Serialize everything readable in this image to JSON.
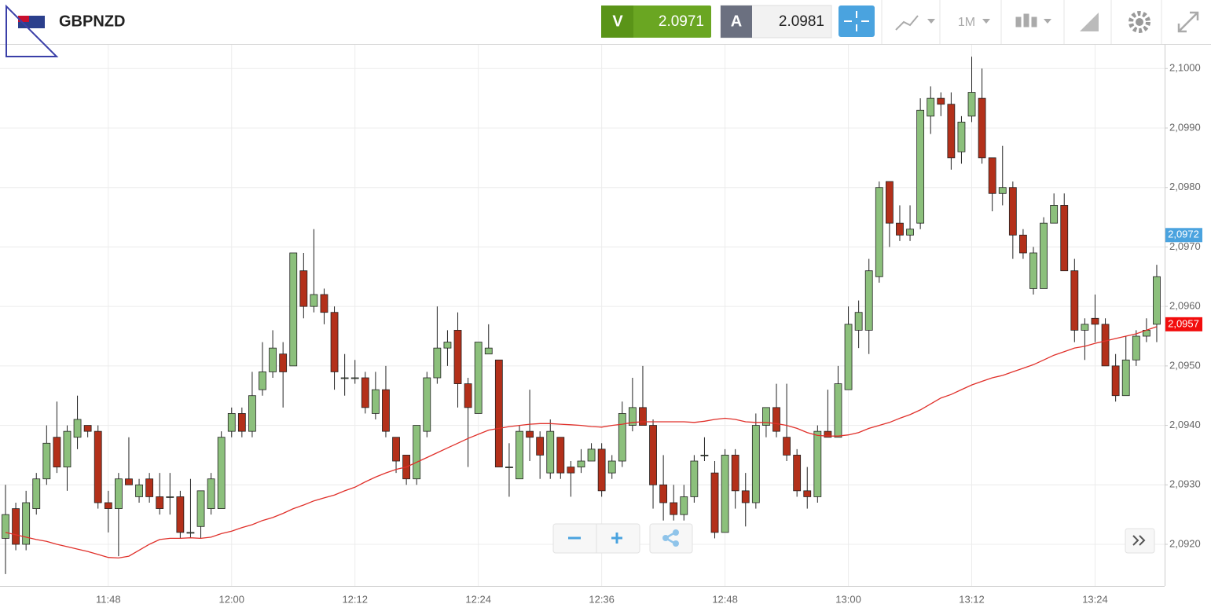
{
  "header": {
    "symbol": "GBPNZD",
    "sell_label": "V",
    "sell_price": "2.0971",
    "buy_label": "A",
    "buy_price": "2.0981",
    "timeframe": "1M"
  },
  "chart_data": {
    "type": "candlestick",
    "categories": [
      null,
      null,
      null,
      null,
      null,
      null,
      null,
      null,
      null,
      null,
      "11:48",
      null,
      null,
      null,
      null,
      null,
      null,
      null,
      null,
      null,
      null,
      null,
      "12:00",
      null,
      null,
      null,
      null,
      null,
      null,
      null,
      null,
      null,
      null,
      null,
      "12:12",
      null,
      null,
      null,
      null,
      null,
      null,
      null,
      null,
      null,
      null,
      null,
      "12:24",
      null,
      null,
      null,
      null,
      null,
      null,
      null,
      null,
      null,
      null,
      null,
      "12:36",
      null,
      null,
      null,
      null,
      null,
      null,
      null,
      null,
      null,
      null,
      null,
      "12:48",
      null,
      null,
      null,
      null,
      null,
      null,
      null,
      null,
      null,
      null,
      null,
      "13:00",
      null,
      null,
      null,
      null,
      null,
      null,
      null,
      null,
      null,
      null,
      null,
      "13:12",
      null,
      null,
      null,
      null,
      null,
      null,
      null,
      null,
      null,
      null,
      null,
      "13:24",
      null,
      null,
      null,
      null,
      null,
      null
    ],
    "open": [
      2.0921,
      2.0926,
      2.092,
      2.0926,
      2.0931,
      2.0938,
      2.0933,
      2.0938,
      2.094,
      2.0939,
      2.0927,
      2.0926,
      2.0931,
      2.0928,
      2.0931,
      2.0928,
      2.0928,
      2.0928,
      2.0922,
      2.0923,
      2.0926,
      2.0926,
      2.0939,
      2.0942,
      2.0939,
      2.0946,
      2.0949,
      2.0952,
      2.095,
      2.0966,
      2.096,
      2.0962,
      2.0959,
      2.0948,
      2.0948,
      2.0948,
      2.0942,
      2.0946,
      2.0938,
      2.0935,
      2.0931,
      2.0939,
      2.0948,
      2.0953,
      2.0956,
      2.0947,
      2.0942,
      2.0952,
      2.0951,
      2.0933,
      2.0931,
      2.0939,
      2.0938,
      2.0932,
      2.0938,
      2.0933,
      2.0933,
      2.0934,
      2.0936,
      2.0932,
      2.0934,
      2.094,
      2.0943,
      2.094,
      2.093,
      2.0927,
      2.0925,
      2.0928,
      2.0935,
      2.0932,
      2.0922,
      2.0935,
      2.0929,
      2.0927,
      2.094,
      2.0943,
      2.0938,
      2.0935,
      2.0929,
      2.0928,
      2.0939,
      2.0938,
      2.0946,
      2.0956,
      2.0956,
      2.0965,
      2.0981,
      2.0974,
      2.0972,
      2.0974,
      2.0992,
      2.0995,
      2.0994,
      2.0986,
      2.0992,
      2.0995,
      2.0985,
      2.0979,
      2.098,
      2.0972,
      2.0963,
      2.0963,
      2.0974,
      2.0977,
      2.0966,
      2.0956,
      2.0958,
      2.0957,
      2.095,
      2.0945,
      2.0951,
      2.0955,
      2.0957
    ],
    "high": [
      2.093,
      2.0927,
      2.0929,
      2.0932,
      2.094,
      2.0944,
      2.094,
      2.0945,
      2.094,
      2.094,
      2.0929,
      2.0932,
      2.0938,
      2.0931,
      2.0932,
      2.0932,
      2.0932,
      2.0929,
      2.0931,
      2.0929,
      2.0932,
      2.0939,
      2.0943,
      2.0943,
      2.0949,
      2.0954,
      2.0956,
      2.0954,
      2.0969,
      2.0969,
      2.0973,
      2.0963,
      2.096,
      2.0952,
      2.0951,
      2.0949,
      2.0949,
      2.095,
      2.0938,
      2.0935,
      2.094,
      2.0949,
      2.096,
      2.0956,
      2.0959,
      2.0948,
      2.0954,
      2.0957,
      2.0951,
      2.0937,
      2.094,
      2.0946,
      2.0939,
      2.0941,
      2.0938,
      2.0934,
      2.0936,
      2.0937,
      2.0937,
      2.0935,
      2.0944,
      2.0948,
      2.095,
      2.0941,
      2.0935,
      2.093,
      2.093,
      2.0935,
      2.0938,
      2.0934,
      2.0936,
      2.0936,
      2.0932,
      2.0942,
      2.0943,
      2.0947,
      2.0947,
      2.0936,
      2.0933,
      2.094,
      2.0946,
      2.095,
      2.096,
      2.0961,
      2.0968,
      2.0981,
      2.0981,
      2.0977,
      2.0977,
      2.0995,
      2.0997,
      2.0996,
      2.0996,
      2.0992,
      2.1002,
      2.1,
      2.0985,
      2.0987,
      2.0981,
      2.0973,
      2.097,
      2.0975,
      2.0979,
      2.0979,
      2.0968,
      2.0958,
      2.0962,
      2.0958,
      2.0952,
      2.0955,
      2.0956,
      2.0958,
      2.0967
    ],
    "low": [
      2.0915,
      2.0919,
      2.0919,
      2.0925,
      2.093,
      2.0932,
      2.0929,
      2.0936,
      2.0938,
      2.0926,
      2.0922,
      2.0918,
      2.093,
      2.0927,
      2.0927,
      2.0925,
      2.0925,
      2.0921,
      2.0921,
      2.0921,
      2.0925,
      2.0926,
      2.0938,
      2.0938,
      2.0938,
      2.0945,
      2.0948,
      2.0943,
      2.095,
      2.0958,
      2.0959,
      2.0957,
      2.0946,
      2.0945,
      2.0947,
      2.0942,
      2.0941,
      2.0938,
      2.0932,
      2.093,
      2.093,
      2.0938,
      2.0947,
      2.095,
      2.0943,
      2.0933,
      2.0942,
      2.0952,
      2.0933,
      2.0928,
      2.0931,
      2.0934,
      2.0931,
      2.0931,
      2.0931,
      2.0928,
      2.0932,
      2.0934,
      2.0928,
      2.0931,
      2.0933,
      2.0939,
      2.094,
      2.0926,
      2.0924,
      2.0924,
      2.0924,
      2.0927,
      2.0934,
      2.0921,
      2.0922,
      2.0926,
      2.0923,
      2.0926,
      2.0938,
      2.0938,
      2.0934,
      2.0928,
      2.0926,
      2.0927,
      2.0938,
      2.0938,
      2.0946,
      2.0953,
      2.0952,
      2.0964,
      2.097,
      2.0971,
      2.0971,
      2.0973,
      2.0989,
      2.0992,
      2.0983,
      2.0984,
      2.0991,
      2.0984,
      2.0976,
      2.0977,
      2.0968,
      2.0968,
      2.0962,
      2.0963,
      2.0974,
      2.0966,
      2.0954,
      2.0951,
      2.0954,
      2.095,
      2.0944,
      2.0945,
      2.095,
      2.0954,
      2.0954
    ],
    "close": [
      2.0925,
      2.092,
      2.0927,
      2.0931,
      2.0937,
      2.0933,
      2.0939,
      2.0941,
      2.0939,
      2.0927,
      2.0926,
      2.0931,
      2.093,
      2.093,
      2.0928,
      2.0926,
      2.0928,
      2.0922,
      2.0922,
      2.0929,
      2.0931,
      2.0938,
      2.0942,
      2.0939,
      2.0945,
      2.0949,
      2.0953,
      2.0949,
      2.0969,
      2.096,
      2.0962,
      2.0959,
      2.0949,
      2.0948,
      2.0948,
      2.0943,
      2.0946,
      2.0939,
      2.0934,
      2.0931,
      2.094,
      2.0948,
      2.0953,
      2.0954,
      2.0947,
      2.0943,
      2.0954,
      2.0953,
      2.0933,
      2.0933,
      2.0939,
      2.0938,
      2.0935,
      2.0939,
      2.0932,
      2.0932,
      2.0934,
      2.0936,
      2.0929,
      2.0934,
      2.0942,
      2.0943,
      2.094,
      2.093,
      2.0927,
      2.0925,
      2.0928,
      2.0934,
      2.0935,
      2.0922,
      2.0935,
      2.0929,
      2.0927,
      2.094,
      2.0943,
      2.0939,
      2.0935,
      2.0929,
      2.0928,
      2.0939,
      2.0938,
      2.0947,
      2.0957,
      2.0959,
      2.0966,
      2.098,
      2.0974,
      2.0972,
      2.0973,
      2.0993,
      2.0995,
      2.0994,
      2.0985,
      2.0991,
      2.0996,
      2.0985,
      2.0979,
      2.098,
      2.0972,
      2.0969,
      2.0969,
      2.0974,
      2.0977,
      2.0966,
      2.0956,
      2.0957,
      2.0957,
      2.095,
      2.0945,
      2.0951,
      2.0955,
      2.0956,
      2.0965
    ],
    "up_color": "#8cc07c",
    "down_color": "#b3301a",
    "moving_average": {
      "color": "#e0302a",
      "values": [
        2.0922,
        2.09216,
        2.09212,
        2.09208,
        2.09205,
        2.092,
        2.09196,
        2.09192,
        2.09188,
        2.09183,
        2.09178,
        2.09177,
        2.0918,
        2.0919,
        2.092,
        2.09208,
        2.0921,
        2.0921,
        2.09211,
        2.0921,
        2.09212,
        2.09218,
        2.09222,
        2.09228,
        2.09233,
        2.0924,
        2.09245,
        2.09252,
        2.0926,
        2.09266,
        2.09273,
        2.09278,
        2.09283,
        2.0929,
        2.09296,
        2.09305,
        2.09313,
        2.0932,
        2.09326,
        2.0933,
        2.09338,
        2.09346,
        2.09354,
        2.09362,
        2.0937,
        2.09378,
        2.09385,
        2.09392,
        2.09395,
        2.09398,
        2.094,
        2.09402,
        2.09403,
        2.09403,
        2.09402,
        2.09401,
        2.094,
        2.09398,
        2.09397,
        2.094,
        2.09402,
        2.09405,
        2.09406,
        2.09406,
        2.09406,
        2.09406,
        2.09406,
        2.09405,
        2.09407,
        2.0941,
        2.09412,
        2.0941,
        2.09406,
        2.09405,
        2.09405,
        2.09403,
        2.094,
        2.09395,
        2.09388,
        2.09383,
        2.09382,
        2.09382,
        2.09384,
        2.09388,
        2.09395,
        2.094,
        2.09405,
        2.09412,
        2.09418,
        2.09426,
        2.09436,
        2.09446,
        2.09452,
        2.0946,
        2.09468,
        2.09474,
        2.0948,
        2.09484,
        2.0949,
        2.09496,
        2.09502,
        2.0951,
        2.09518,
        2.09524,
        2.0953,
        2.09533,
        2.09538,
        2.09542,
        2.09546,
        2.0955,
        2.09554,
        2.0956,
        2.09566
      ]
    },
    "price_markers": [
      {
        "value": 2.0972,
        "label": "2,0972",
        "color": "#4aa3df"
      },
      {
        "value": 2.0957,
        "label": "2,0957",
        "color": "#f20d0d"
      }
    ],
    "ylim": [
      2.0913,
      2.1004
    ],
    "yticks": [
      {
        "value": 2.092,
        "label": "2,0920"
      },
      {
        "value": 2.093,
        "label": "2,0930"
      },
      {
        "value": 2.094,
        "label": "2,0940"
      },
      {
        "value": 2.095,
        "label": "2,0950"
      },
      {
        "value": 2.096,
        "label": "2,0960"
      },
      {
        "value": 2.097,
        "label": "2,0970"
      },
      {
        "value": 2.098,
        "label": "2,0980"
      },
      {
        "value": 2.099,
        "label": "2,0990"
      },
      {
        "value": 2.1,
        "label": "2,1000"
      }
    ],
    "grid": true
  }
}
